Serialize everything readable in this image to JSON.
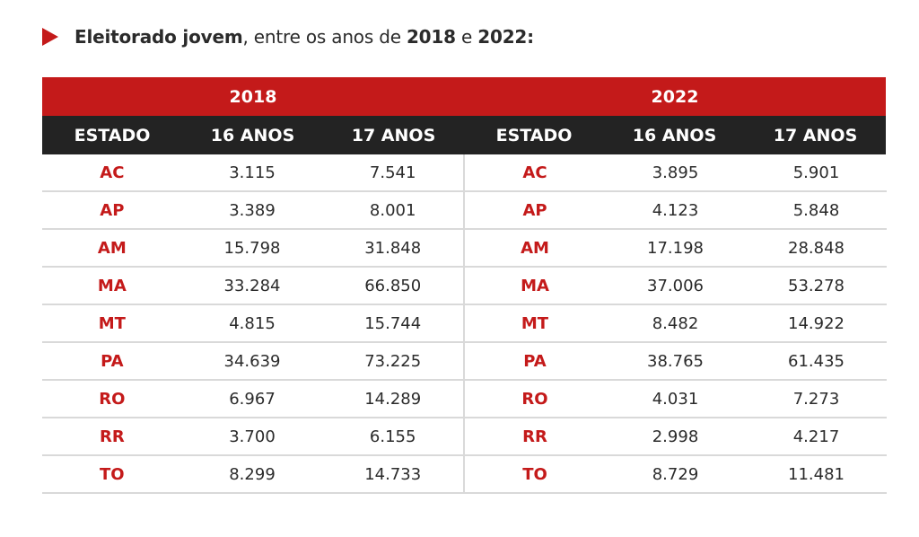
{
  "title": {
    "bold1": "Eleitorado jovem",
    "normal1": ", entre os anos de ",
    "bold2": "2018",
    "normal2": " e ",
    "bold3": "2022:"
  },
  "colors": {
    "accent": "#c41a1a",
    "header_dark": "#232323",
    "divider": "#d9d9d9"
  },
  "table": {
    "groups": [
      {
        "year": "2018",
        "headers": [
          "ESTADO",
          "16 ANOS",
          "17 ANOS"
        ],
        "rows": [
          [
            "AC",
            "3.115",
            "7.541"
          ],
          [
            "AP",
            "3.389",
            "8.001"
          ],
          [
            "AM",
            "15.798",
            "31.848"
          ],
          [
            "MA",
            "33.284",
            "66.850"
          ],
          [
            "MT",
            "4.815",
            "15.744"
          ],
          [
            "PA",
            "34.639",
            "73.225"
          ],
          [
            "RO",
            "6.967",
            "14.289"
          ],
          [
            "RR",
            "3.700",
            "6.155"
          ],
          [
            "TO",
            "8.299",
            "14.733"
          ]
        ]
      },
      {
        "year": "2022",
        "headers": [
          "ESTADO",
          "16 ANOS",
          "17 ANOS"
        ],
        "rows": [
          [
            "AC",
            "3.895",
            "5.901"
          ],
          [
            "AP",
            "4.123",
            "5.848"
          ],
          [
            "AM",
            "17.198",
            "28.848"
          ],
          [
            "MA",
            "37.006",
            "53.278"
          ],
          [
            "MT",
            "8.482",
            "14.922"
          ],
          [
            "PA",
            "38.765",
            "61.435"
          ],
          [
            "RO",
            "4.031",
            "7.273"
          ],
          [
            "RR",
            "2.998",
            "4.217"
          ],
          [
            "TO",
            "8.729",
            "11.481"
          ]
        ]
      }
    ]
  }
}
